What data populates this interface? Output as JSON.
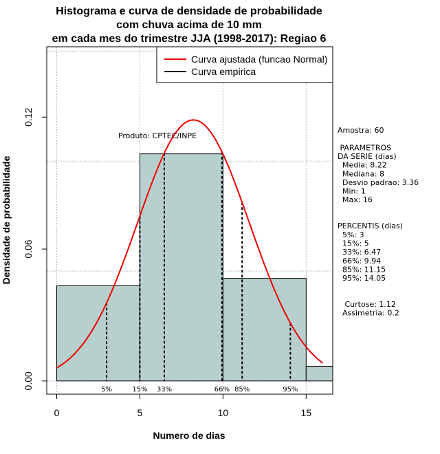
{
  "chart_data": {
    "type": "bar",
    "title_lines": [
      "Histograma e curva de densidade de probabilidade",
      "com chuva acima de 10 mm",
      "em cada mes do trimestre JJA (1998-2017): Regiao 6"
    ],
    "xlabel": "Numero de dias",
    "ylabel": "Densidade de probabilidade",
    "xlim": [
      -0.6,
      16.6
    ],
    "ylim": [
      -0.006,
      0.152
    ],
    "x_ticks": [
      0,
      5,
      10,
      15
    ],
    "y_ticks": [
      0.0,
      0.06,
      0.12
    ],
    "y_tick_labels": [
      "0.00",
      "0.06",
      "0.12"
    ],
    "grid_x": [
      0,
      5,
      10,
      15
    ],
    "grid_y": [
      0.0,
      0.05,
      0.1,
      0.15
    ],
    "bins": [
      {
        "start": 0,
        "end": 5,
        "density": 0.0433
      },
      {
        "start": 5,
        "end": 10,
        "density": 0.1033
      },
      {
        "start": 10,
        "end": 15,
        "density": 0.0467
      },
      {
        "start": 15,
        "end": 16.6,
        "density": 0.0067
      }
    ],
    "normal_curve": {
      "name": "Curva ajustada (funcao Normal)",
      "mean": 8.22,
      "sd": 3.36,
      "x_from": 0,
      "x_to": 16,
      "color": "#ee0000"
    },
    "percentile_lines": [
      {
        "label": "5%",
        "x": 3
      },
      {
        "label": "15%",
        "x": 5
      },
      {
        "label": "33%",
        "x": 6.47
      },
      {
        "label": "66%",
        "x": 9.94
      },
      {
        "label": "85%",
        "x": 11.15
      },
      {
        "label": "95%",
        "x": 14.05
      }
    ],
    "annotation": "Produto: CPTEC/INPE",
    "legend": {
      "placement": "top-right",
      "entries": [
        {
          "label": "Curva ajustada (funcao Normal)",
          "color": "#ee0000"
        },
        {
          "label": "Curva empirica",
          "color": "#000000"
        }
      ]
    },
    "colors": {
      "bar_fill": "#b7cfcd",
      "bar_stroke": "#000000",
      "grid": "#b8b8b8",
      "curve": "#ee0000"
    }
  },
  "side_panel": {
    "lines": [
      "Amostra: 60",
      "",
      " PARAMETROS",
      "DA SERIE (dias)",
      "  Media: 8.22",
      "  Mediana: 8",
      "  Desvio padrao: 3.36",
      "  Min: 1",
      "  Max: 16",
      "",
      "",
      "PERCENTIS (dias)",
      "  5%: 3",
      "  15%: 5",
      "  33%: 6.47",
      "  66%: 9.94",
      "  85%: 11.15",
      "  95%: 14.05",
      "",
      "",
      "   Curtose: 1.12",
      "  Assimetria: 0.2"
    ]
  }
}
